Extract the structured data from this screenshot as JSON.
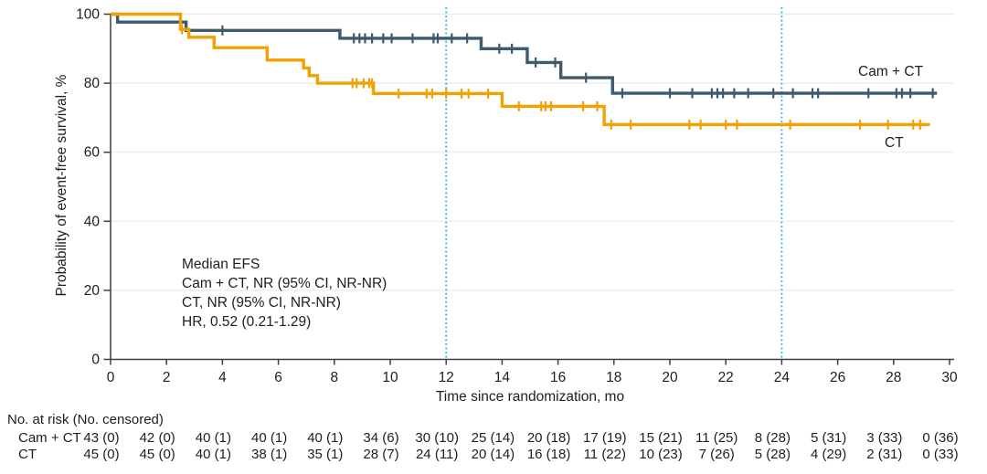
{
  "chart_data": {
    "type": "line",
    "subtype": "kaplan_meier_step",
    "title": "",
    "xlabel": "Time since randomization, mo",
    "ylabel": "Probability of event-free survival, %",
    "xlim": [
      0,
      30
    ],
    "ylim": [
      0,
      100
    ],
    "xticks": [
      0,
      2,
      4,
      6,
      8,
      10,
      12,
      14,
      16,
      18,
      20,
      22,
      24,
      26,
      28,
      30
    ],
    "yticks": [
      0,
      20,
      40,
      60,
      80,
      100
    ],
    "grid": "horizontal-light",
    "legend_position": "curve-end-labels",
    "reference_lines_x": [
      12,
      24
    ],
    "series": [
      {
        "id": "cam-ct",
        "name": "Cam + CT",
        "color": "#3e5a6c",
        "steps": [
          [
            0,
            100
          ],
          [
            0.25,
            97.7
          ],
          [
            2.7,
            95.3
          ],
          [
            8.2,
            93.0
          ],
          [
            13.25,
            90.0
          ],
          [
            14.9,
            86.0
          ],
          [
            16.1,
            81.6
          ],
          [
            17.95,
            77.1
          ]
        ],
        "end_x": 29.55,
        "censors": [
          4.0,
          8.7,
          8.9,
          9.1,
          9.35,
          9.75,
          10.05,
          10.8,
          11.55,
          11.7,
          12.2,
          12.75,
          13.9,
          14.35,
          15.2,
          15.9,
          17.0,
          18.3,
          20.0,
          20.8,
          21.5,
          21.7,
          21.9,
          22.3,
          22.8,
          23.7,
          24.4,
          25.1,
          25.3,
          27.1,
          28.1,
          28.3,
          28.6,
          29.4
        ]
      },
      {
        "id": "ct",
        "name": "CT",
        "color": "#f2a105",
        "steps": [
          [
            0,
            100
          ],
          [
            2.5,
            95.6
          ],
          [
            2.8,
            93.3
          ],
          [
            3.7,
            90.3
          ],
          [
            5.6,
            86.7
          ],
          [
            6.9,
            84.4
          ],
          [
            7.1,
            82.2
          ],
          [
            7.4,
            80.0
          ],
          [
            9.4,
            77.0
          ],
          [
            14.0,
            73.3
          ],
          [
            17.65,
            68.0
          ]
        ],
        "end_x": 29.3,
        "censors": [
          2.55,
          8.65,
          8.8,
          9.05,
          9.25,
          9.35,
          10.3,
          11.3,
          11.5,
          12.0,
          12.55,
          12.8,
          13.5,
          14.6,
          15.4,
          15.55,
          15.75,
          16.9,
          17.4,
          17.9,
          18.6,
          20.7,
          21.1,
          22.0,
          22.4,
          24.3,
          26.8,
          27.8,
          28.7,
          28.95
        ]
      }
    ],
    "annotation_lines": [
      "Median EFS",
      "Cam + CT, NR (95% CI, NR-NR)",
      "CT, NR (95% CI, NR-NR)",
      "HR, 0.52 (0.21-1.29)"
    ]
  },
  "risk_table": {
    "header": "No. at risk (No. censored)",
    "rows": [
      {
        "label": "Cam + CT",
        "values": [
          "43 (0)",
          "42 (0)",
          "40 (1)",
          "40 (1)",
          "40 (1)",
          "34 (6)",
          "30 (10)",
          "25 (14)",
          "20 (18)",
          "17 (19)",
          "15 (21)",
          "11 (25)",
          "8 (28)",
          "5 (31)",
          "3 (33)",
          "0 (36)"
        ]
      },
      {
        "label": "CT",
        "values": [
          "45 (0)",
          "45 (0)",
          "40 (1)",
          "38 (1)",
          "35 (1)",
          "28 (7)",
          "24 (11)",
          "20 (14)",
          "16 (18)",
          "11 (22)",
          "10 (23)",
          "7 (26)",
          "5 (28)",
          "4 (29)",
          "2 (31)",
          "0 (33)"
        ]
      }
    ]
  },
  "colors": {
    "cam_ct": "#3e5a6c",
    "ct": "#f2a105",
    "reference_line": "#35b4e8",
    "grid": "#ebebeb",
    "axis": "#3f3f3f",
    "text": "#1e1e1e"
  }
}
